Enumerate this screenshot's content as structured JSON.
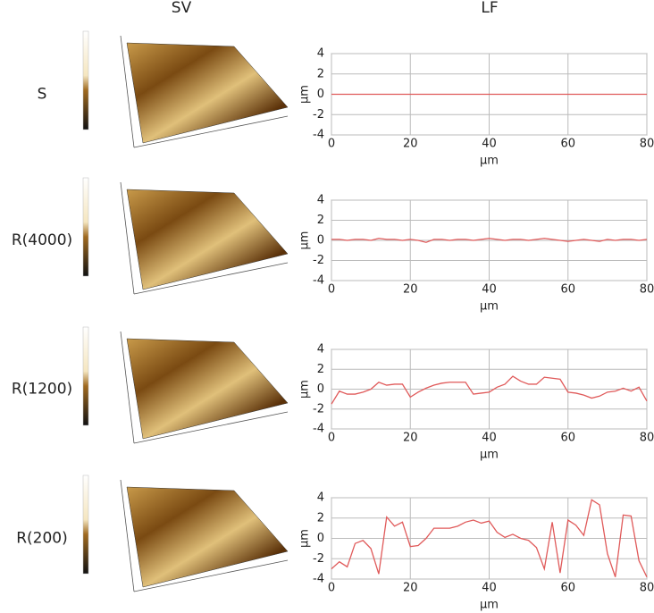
{
  "column_titles": [
    "SV",
    "LF"
  ],
  "row_labels": [
    "S",
    "R(4000)",
    "R(1200)",
    "R(200)"
  ],
  "chart_data": [
    {
      "type": "line",
      "x": [
        0,
        2,
        4,
        6,
        8,
        10,
        12,
        14,
        16,
        18,
        20,
        22,
        24,
        26,
        28,
        30,
        32,
        34,
        36,
        38,
        40,
        42,
        44,
        46,
        48,
        50,
        52,
        54,
        56,
        58,
        60,
        62,
        64,
        66,
        68,
        70,
        72,
        74,
        76,
        78,
        80
      ],
      "series": [
        {
          "color": "#e05a5a",
          "values": [
            0,
            0,
            0,
            0,
            0,
            0,
            0,
            0,
            0,
            0,
            0,
            0,
            0,
            0,
            0,
            0,
            0,
            0,
            0,
            0,
            0,
            0,
            0,
            0,
            0,
            0,
            0,
            0,
            0,
            0,
            0,
            0,
            0,
            0,
            0,
            0,
            0,
            0,
            0,
            0,
            0
          ]
        }
      ],
      "xlim": [
        0,
        80
      ],
      "ylim": [
        -4,
        4
      ],
      "xticks": [
        0,
        20,
        40,
        60,
        80
      ],
      "yticks": [
        -4,
        -2,
        0,
        2,
        4
      ],
      "xlabel": "μm",
      "ylabel": "μm",
      "grid": true
    },
    {
      "type": "line",
      "x": [
        0,
        2,
        4,
        6,
        8,
        10,
        12,
        14,
        16,
        18,
        20,
        22,
        24,
        26,
        28,
        30,
        32,
        34,
        36,
        38,
        40,
        42,
        44,
        46,
        48,
        50,
        52,
        54,
        56,
        58,
        60,
        62,
        64,
        66,
        68,
        70,
        72,
        74,
        76,
        78,
        80
      ],
      "series": [
        {
          "color": "#e05a5a",
          "values": [
            0.1,
            0.1,
            0.0,
            0.1,
            0.1,
            0.0,
            0.2,
            0.1,
            0.1,
            0.0,
            0.1,
            0.0,
            -0.2,
            0.1,
            0.1,
            0.0,
            0.1,
            0.1,
            0.0,
            0.1,
            0.2,
            0.1,
            0.0,
            0.1,
            0.1,
            0.0,
            0.1,
            0.2,
            0.1,
            0.0,
            -0.1,
            0.0,
            0.1,
            0.0,
            -0.1,
            0.1,
            0.0,
            0.1,
            0.1,
            0.0,
            0.1
          ]
        }
      ],
      "xlim": [
        0,
        80
      ],
      "ylim": [
        -4,
        4
      ],
      "xticks": [
        0,
        20,
        40,
        60,
        80
      ],
      "yticks": [
        -4,
        -2,
        0,
        2,
        4
      ],
      "xlabel": "μm",
      "ylabel": "μm",
      "grid": true
    },
    {
      "type": "line",
      "x": [
        0,
        2,
        4,
        6,
        8,
        10,
        12,
        14,
        16,
        18,
        20,
        22,
        24,
        26,
        28,
        30,
        32,
        34,
        36,
        38,
        40,
        42,
        44,
        46,
        48,
        50,
        52,
        54,
        56,
        58,
        60,
        62,
        64,
        66,
        68,
        70,
        72,
        74,
        76,
        78,
        80
      ],
      "series": [
        {
          "color": "#e05a5a",
          "values": [
            -1.5,
            -0.2,
            -0.5,
            -0.5,
            -0.3,
            0.0,
            0.7,
            0.4,
            0.5,
            0.5,
            -0.8,
            -0.3,
            0.1,
            0.4,
            0.6,
            0.7,
            0.7,
            0.7,
            -0.5,
            -0.4,
            -0.3,
            0.2,
            0.5,
            1.3,
            0.8,
            0.5,
            0.5,
            1.2,
            1.1,
            1.0,
            -0.3,
            -0.4,
            -0.6,
            -0.9,
            -0.7,
            -0.3,
            -0.2,
            0.1,
            -0.2,
            0.2,
            -1.2
          ]
        }
      ],
      "xlim": [
        0,
        80
      ],
      "ylim": [
        -4,
        4
      ],
      "xticks": [
        0,
        20,
        40,
        60,
        80
      ],
      "yticks": [
        -4,
        -2,
        0,
        2,
        4
      ],
      "xlabel": "μm",
      "ylabel": "μm",
      "grid": true
    },
    {
      "type": "line",
      "x": [
        0,
        2,
        4,
        6,
        8,
        10,
        12,
        14,
        16,
        18,
        20,
        22,
        24,
        26,
        28,
        30,
        32,
        34,
        36,
        38,
        40,
        42,
        44,
        46,
        48,
        50,
        52,
        54,
        56,
        58,
        60,
        62,
        64,
        66,
        68,
        70,
        72,
        74,
        76,
        78,
        80
      ],
      "series": [
        {
          "color": "#e05a5a",
          "values": [
            -3.0,
            -2.3,
            -2.8,
            -0.5,
            -0.2,
            -1.0,
            -3.5,
            2.1,
            1.2,
            1.6,
            -0.8,
            -0.7,
            0.0,
            1.0,
            1.0,
            1.0,
            1.2,
            1.6,
            1.8,
            1.5,
            1.7,
            0.6,
            0.1,
            0.4,
            0.0,
            -0.2,
            -0.9,
            -3.0,
            1.6,
            -3.4,
            1.8,
            1.3,
            0.3,
            3.8,
            3.3,
            -1.5,
            -3.8,
            2.3,
            2.2,
            -2.2,
            -3.8
          ]
        }
      ],
      "xlim": [
        0,
        80
      ],
      "ylim": [
        -4,
        4
      ],
      "xticks": [
        0,
        20,
        40,
        60,
        80
      ],
      "yticks": [
        -4,
        -2,
        0,
        2,
        4
      ],
      "xlabel": "μm",
      "ylabel": "μm",
      "grid": true
    }
  ]
}
